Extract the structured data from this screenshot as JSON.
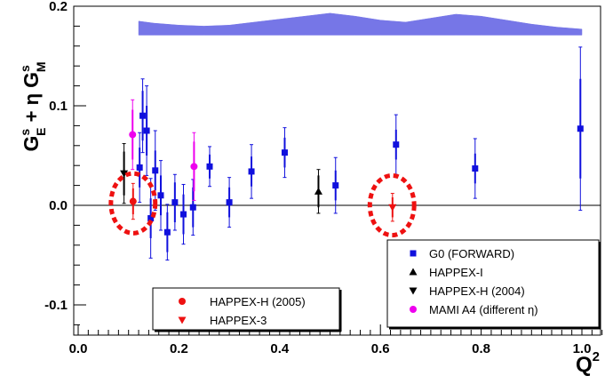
{
  "chart_data": {
    "type": "scatter",
    "xlim": [
      0.0,
      1.05
    ],
    "ylim": [
      -0.13,
      0.2
    ],
    "x_ticks": [
      {
        "v": 0.0,
        "label": "0.0"
      },
      {
        "v": 0.2,
        "label": "0.2"
      },
      {
        "v": 0.4,
        "label": "0.4"
      },
      {
        "v": 0.6,
        "label": "0.6"
      },
      {
        "v": 0.8,
        "label": "0.8"
      },
      {
        "v": 1.0,
        "label": "1.0"
      }
    ],
    "y_ticks": [
      {
        "v": -0.1,
        "label": "-0.1"
      },
      {
        "v": 0.0,
        "label": "0.0"
      },
      {
        "v": 0.1,
        "label": "0.1"
      },
      {
        "v": 0.2,
        "label": "0.2"
      }
    ],
    "xlabel": "Q",
    "xlabel_sup": "2",
    "ylabel": {
      "g1": "G",
      "g1_sup": "s",
      "g1_sub": "E",
      "plus_eta": " + η ",
      "g2": "G",
      "g2_sup": "s",
      "g2_sub": "M"
    },
    "zero_line": true,
    "systematic_band": {
      "color": "#6f6fe6",
      "x": [
        0.12,
        0.15,
        0.2,
        0.25,
        0.3,
        0.35,
        0.4,
        0.45,
        0.5,
        0.55,
        0.6,
        0.65,
        0.7,
        0.75,
        0.8,
        0.85,
        0.9,
        0.95,
        1.0
      ],
      "upper": [
        0.185,
        0.183,
        0.181,
        0.18,
        0.181,
        0.184,
        0.187,
        0.19,
        0.193,
        0.19,
        0.186,
        0.184,
        0.188,
        0.192,
        0.19,
        0.186,
        0.182,
        0.179,
        0.177
      ],
      "lower": [
        0.171,
        0.171,
        0.171,
        0.171,
        0.171,
        0.171,
        0.171,
        0.171,
        0.171,
        0.171,
        0.171,
        0.171,
        0.171,
        0.171,
        0.171,
        0.171,
        0.171,
        0.171,
        0.171
      ]
    },
    "series": [
      {
        "name": "G0 (FORWARD)",
        "marker": "square",
        "color": "#1010dd",
        "points": [
          {
            "x": 0.122,
            "y": 0.038,
            "err_stat": 0.02,
            "err_tot": 0.035
          },
          {
            "x": 0.128,
            "y": 0.09,
            "err_stat": 0.025,
            "err_tot": 0.037
          },
          {
            "x": 0.136,
            "y": 0.075,
            "err_stat": 0.025,
            "err_tot": 0.045
          },
          {
            "x": 0.144,
            "y": -0.013,
            "err_stat": 0.02,
            "err_tot": 0.04
          },
          {
            "x": 0.153,
            "y": 0.035,
            "err_stat": 0.02,
            "err_tot": 0.04
          },
          {
            "x": 0.164,
            "y": 0.01,
            "err_stat": 0.02,
            "err_tot": 0.035
          },
          {
            "x": 0.177,
            "y": -0.027,
            "err_stat": 0.02,
            "err_tot": 0.028
          },
          {
            "x": 0.192,
            "y": 0.003,
            "err_stat": 0.02,
            "err_tot": 0.028
          },
          {
            "x": 0.209,
            "y": -0.009,
            "err_stat": 0.02,
            "err_tot": 0.03
          },
          {
            "x": 0.228,
            "y": -0.002,
            "err_stat": 0.02,
            "err_tot": 0.028
          },
          {
            "x": 0.261,
            "y": 0.039,
            "err_stat": 0.012,
            "err_tot": 0.02
          },
          {
            "x": 0.3,
            "y": 0.003,
            "err_stat": 0.015,
            "err_tot": 0.025
          },
          {
            "x": 0.344,
            "y": 0.034,
            "err_stat": 0.015,
            "err_tot": 0.027
          },
          {
            "x": 0.41,
            "y": 0.053,
            "err_stat": 0.015,
            "err_tot": 0.025
          },
          {
            "x": 0.511,
            "y": 0.02,
            "err_stat": 0.015,
            "err_tot": 0.028
          },
          {
            "x": 0.631,
            "y": 0.061,
            "err_stat": 0.015,
            "err_tot": 0.03
          },
          {
            "x": 0.788,
            "y": 0.037,
            "err_stat": 0.015,
            "err_tot": 0.03
          },
          {
            "x": 0.997,
            "y": 0.077,
            "err_stat": 0.05,
            "err_tot": 0.082
          }
        ]
      },
      {
        "name": "HAPPEX-I",
        "marker": "triangle-up",
        "color": "#000000",
        "points": [
          {
            "x": 0.477,
            "y": 0.014,
            "err_stat": 0.016,
            "err_tot": 0.022
          }
        ]
      },
      {
        "name": "HAPPEX-H (2004)",
        "marker": "triangle-down",
        "color": "#000000",
        "points": [
          {
            "x": 0.091,
            "y": 0.032,
            "err_stat": 0.022,
            "err_tot": 0.03
          }
        ]
      },
      {
        "name": "MAMI A4 (different η)",
        "marker": "circle",
        "color": "#ee00ee",
        "points": [
          {
            "x": 0.108,
            "y": 0.071,
            "err_stat": 0.025,
            "err_tot": 0.035
          },
          {
            "x": 0.23,
            "y": 0.039,
            "err_stat": 0.025,
            "err_tot": 0.034
          }
        ]
      },
      {
        "name": "HAPPEX-H (2005)",
        "marker": "circle",
        "color": "#ee1111",
        "points": [
          {
            "x": 0.109,
            "y": 0.004,
            "err_stat": 0.013,
            "err_tot": 0.018
          }
        ]
      },
      {
        "name": "HAPPEX-3",
        "marker": "triangle-down",
        "color": "#ee1111",
        "points": [
          {
            "x": 0.624,
            "y": -0.002,
            "err_stat": 0.01,
            "err_tot": 0.014
          }
        ]
      }
    ],
    "highlight_ellipses": [
      {
        "x": 0.109,
        "y": 0.002,
        "rx": 0.044,
        "ry": 0.03
      },
      {
        "x": 0.623,
        "y": 0.0,
        "rx": 0.044,
        "ry": 0.03
      }
    ],
    "legends": [
      {
        "position": "bottom-right",
        "entries": [
          "G0 (FORWARD)",
          "HAPPEX-I",
          "HAPPEX-H (2004)",
          "MAMI A4 (different η)"
        ]
      },
      {
        "position": "bottom-center-left",
        "entries": [
          "HAPPEX-H (2005)",
          "HAPPEX-3"
        ]
      }
    ]
  }
}
